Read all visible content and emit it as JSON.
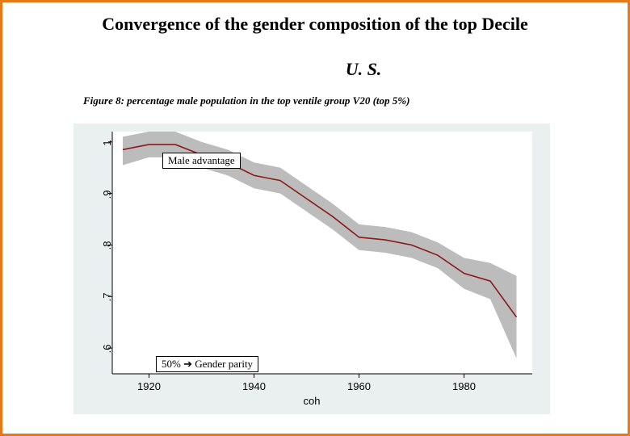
{
  "title": "Convergence of the gender composition of the top Decile",
  "subtitle": "U. S.",
  "figure_caption": "Figure 8: percentage male population in the top ventile group V20 (top 5%)",
  "annotations": {
    "top": "Male advantage",
    "bottom": "50% ➔ Gender parity"
  },
  "chart": {
    "type": "line-with-band",
    "background_color": "#eaf0f0",
    "plot_bg_color": "#ffffff",
    "line_color": "#8b1a1a",
    "band_color": "#b0b0b0",
    "border_color_frame": "#e77817",
    "axis_color": "#000000",
    "xlabel": "coh",
    "xlim": [
      1913,
      1993
    ],
    "xticks": [
      1920,
      1940,
      1960,
      1980
    ],
    "ylim": [
      0.55,
      1.02
    ],
    "yticks": [
      0.6,
      0.7,
      0.8,
      0.9,
      1.0
    ],
    "ytick_labels": [
      ".6",
      ".7",
      ".8",
      ".9",
      "1"
    ],
    "font_family_axes": "Arial",
    "font_size_axes": 13,
    "font_family_text": "Georgia",
    "series": {
      "x": [
        1915,
        1920,
        1925,
        1930,
        1935,
        1940,
        1945,
        1950,
        1955,
        1960,
        1965,
        1970,
        1975,
        1980,
        1985,
        1990
      ],
      "y": [
        0.985,
        0.995,
        0.995,
        0.975,
        0.96,
        0.935,
        0.925,
        0.89,
        0.855,
        0.815,
        0.81,
        0.8,
        0.78,
        0.745,
        0.73,
        0.66
      ],
      "lo": [
        0.955,
        0.97,
        0.97,
        0.95,
        0.935,
        0.91,
        0.9,
        0.865,
        0.83,
        0.79,
        0.785,
        0.775,
        0.755,
        0.715,
        0.695,
        0.58
      ],
      "hi": [
        1.01,
        1.02,
        1.02,
        1.0,
        0.985,
        0.96,
        0.95,
        0.915,
        0.88,
        0.84,
        0.835,
        0.825,
        0.805,
        0.775,
        0.765,
        0.74
      ]
    }
  }
}
